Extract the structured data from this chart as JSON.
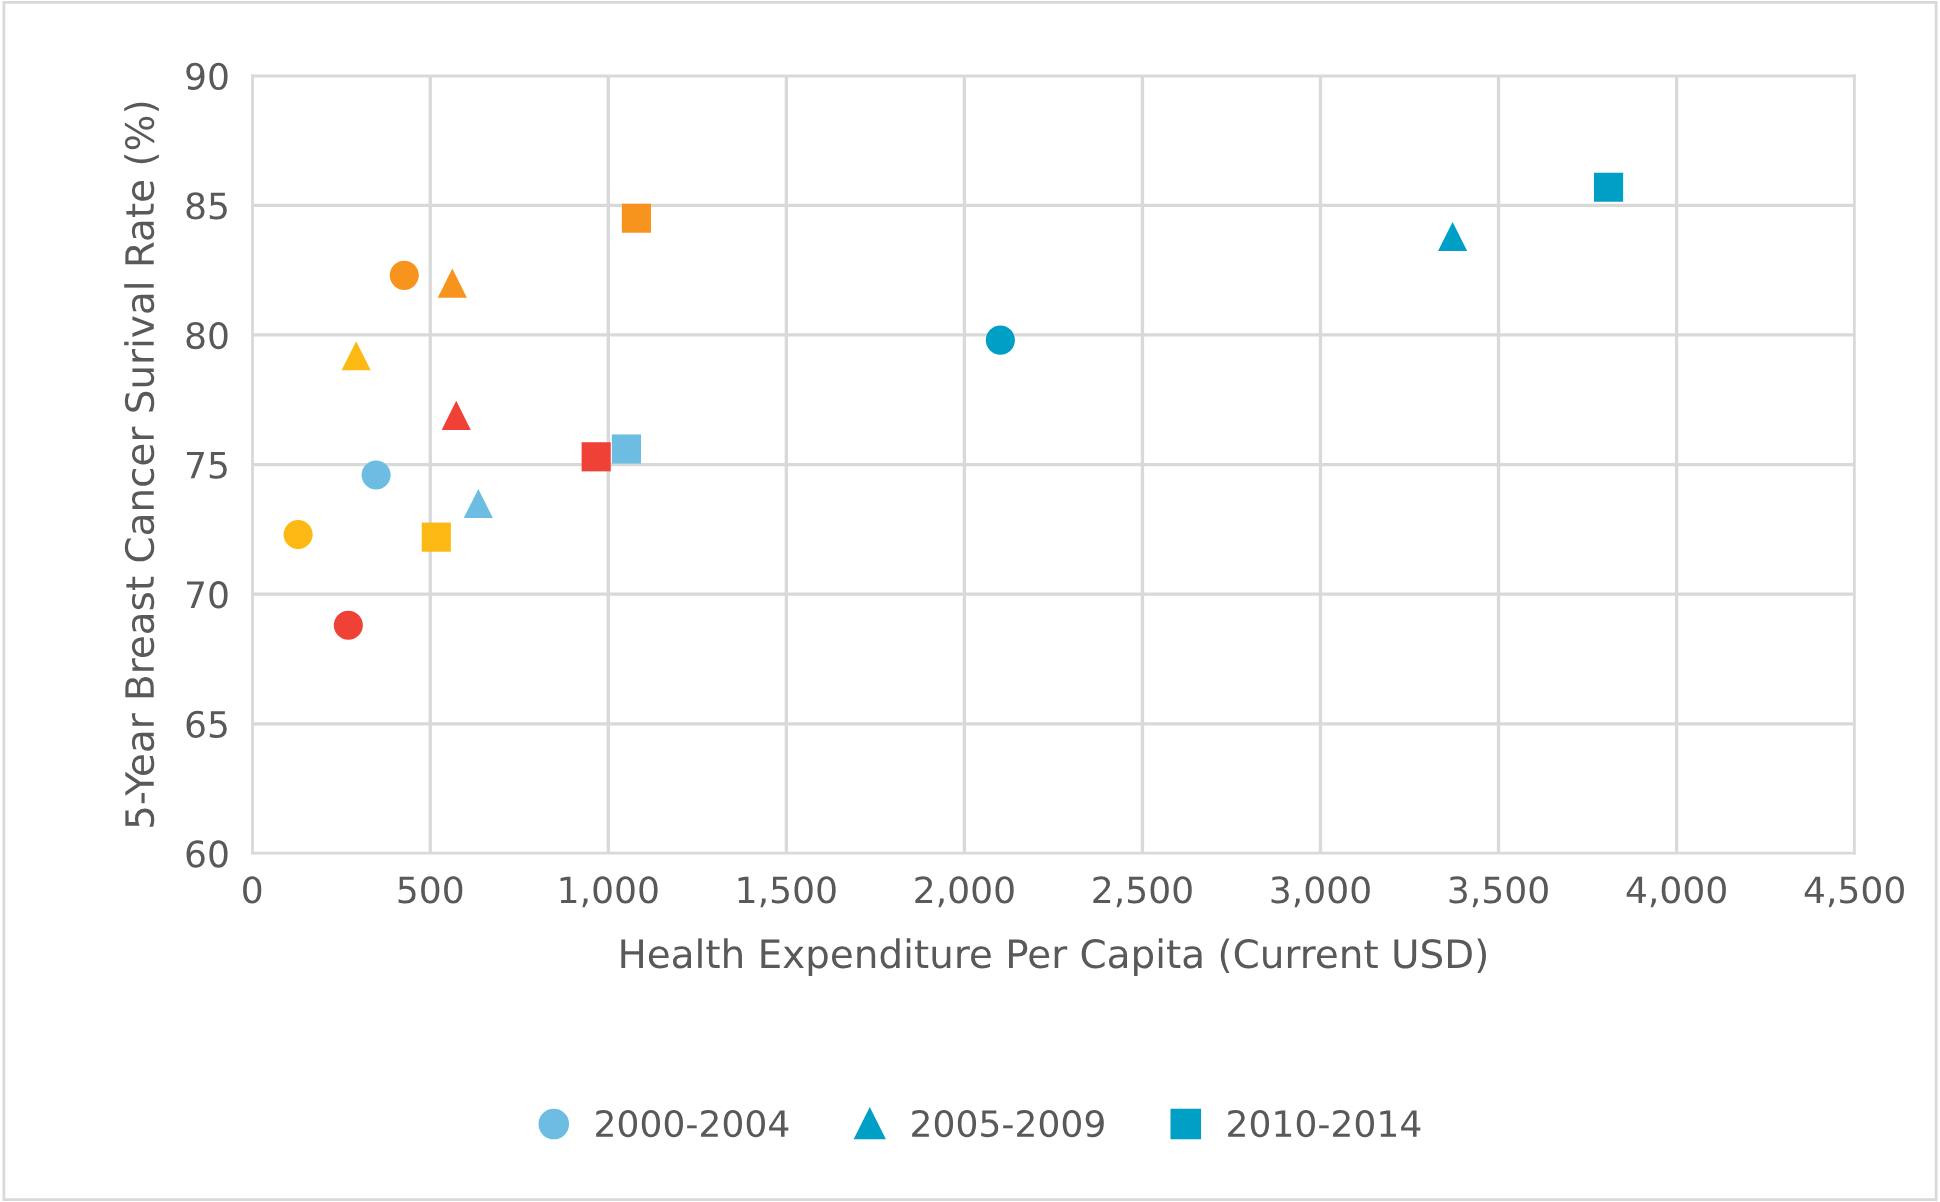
{
  "chart_data": {
    "type": "scatter",
    "xlabel": "Health Expenditure Per Capita (Current USD)",
    "ylabel": "5-Year Breast Cancer Surival Rate (%)",
    "xlim": [
      0,
      4500
    ],
    "xticks": [
      {
        "value": 0,
        "label": "0"
      },
      {
        "value": 500,
        "label": "500"
      },
      {
        "value": 1000,
        "label": "1,000"
      },
      {
        "value": 1500,
        "label": "1,500"
      },
      {
        "value": 2000,
        "label": "2,000"
      },
      {
        "value": 2500,
        "label": "2,500"
      },
      {
        "value": 3000,
        "label": "3,000"
      },
      {
        "value": 3500,
        "label": "3,500"
      },
      {
        "value": 4000,
        "label": "4,000"
      },
      {
        "value": 4500,
        "label": "4,500"
      }
    ],
    "ylim": [
      60,
      90
    ],
    "yticks": [
      60,
      65,
      70,
      75,
      80,
      85,
      90
    ],
    "grid": true,
    "legend": "bottom",
    "series": [
      {
        "name": "2000-2004",
        "marker": "circle",
        "color": "#6dbde3",
        "x": [
          348,
          129,
          427,
          270,
          2101
        ],
        "values": [
          74.6,
          72.3,
          82.3,
          68.8,
          79.8
        ],
        "colors": [
          "#6dbde3",
          "#fdb913",
          "#f7941d",
          "#ef4136",
          "#00a0c6"
        ]
      },
      {
        "name": "2005-2009",
        "marker": "triangle",
        "color": "#00a0c6",
        "x": [
          635,
          292,
          562,
          573,
          3371
        ],
        "values": [
          73.5,
          79.2,
          82.0,
          76.9,
          83.8
        ],
        "colors": [
          "#6dbde3",
          "#fdb913",
          "#f7941d",
          "#ef4136",
          "#00a0c6"
        ]
      },
      {
        "name": "2010-2014",
        "marker": "square",
        "color": "#00a0c6",
        "x": [
          1051,
          517,
          1079,
          966,
          3809
        ],
        "values": [
          75.6,
          72.2,
          84.5,
          75.3,
          85.7
        ],
        "colors": [
          "#6dbde3",
          "#fdb913",
          "#f7941d",
          "#ef4136",
          "#00a0c6"
        ]
      }
    ]
  }
}
